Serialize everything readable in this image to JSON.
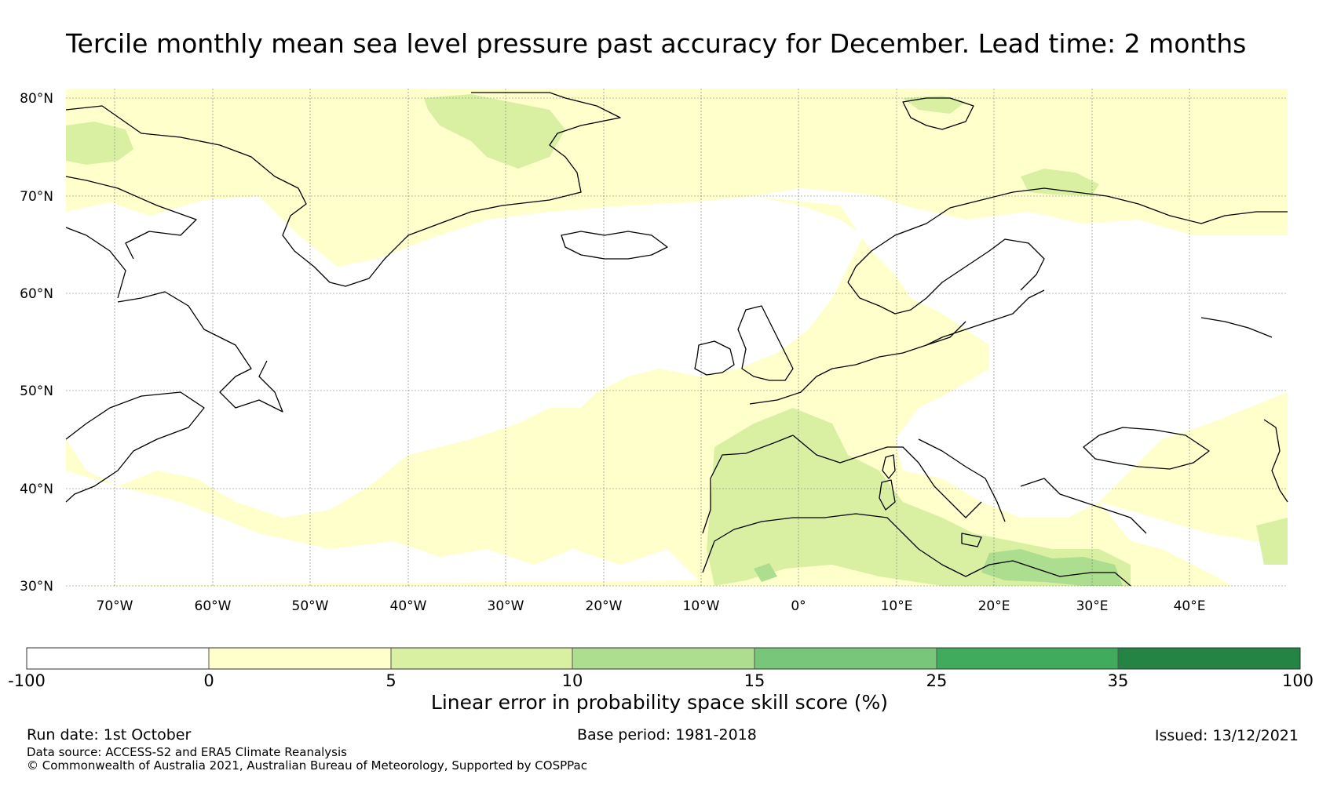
{
  "title": "Tercile monthly mean sea level pressure past accuracy for December. Lead time: 2 months",
  "map": {
    "lat_ticks": [
      "80°N",
      "70°N",
      "60°N",
      "50°N",
      "40°N",
      "30°N"
    ],
    "lon_ticks": [
      "70°W",
      "60°W",
      "50°W",
      "40°W",
      "30°W",
      "20°W",
      "10°W",
      "0°",
      "10°E",
      "20°E",
      "30°E",
      "40°E"
    ],
    "lat_range": [
      30,
      81
    ],
    "lon_range": [
      -75,
      50
    ]
  },
  "colorbar": {
    "boundaries": [
      "-100",
      "0",
      "5",
      "10",
      "15",
      "25",
      "35",
      "100"
    ],
    "colors": [
      "#ffffff",
      "#ffffcc",
      "#d9f0a3",
      "#addd8e",
      "#78c679",
      "#41ab5d",
      "#238443"
    ],
    "label": "Linear error in probability space skill score (%)"
  },
  "footer": {
    "run_date": "Run date: 1st October",
    "base_period": "Base period: 1981-2018",
    "issued": "Issued: 13/12/2021",
    "data_source": "Data source: ACCESS-S2 and ERA5 Climate Reanalysis",
    "copyright": "© Commonwealth of Australia 2021, Australian Bureau of Meteorology, Supported by COSPPac"
  }
}
